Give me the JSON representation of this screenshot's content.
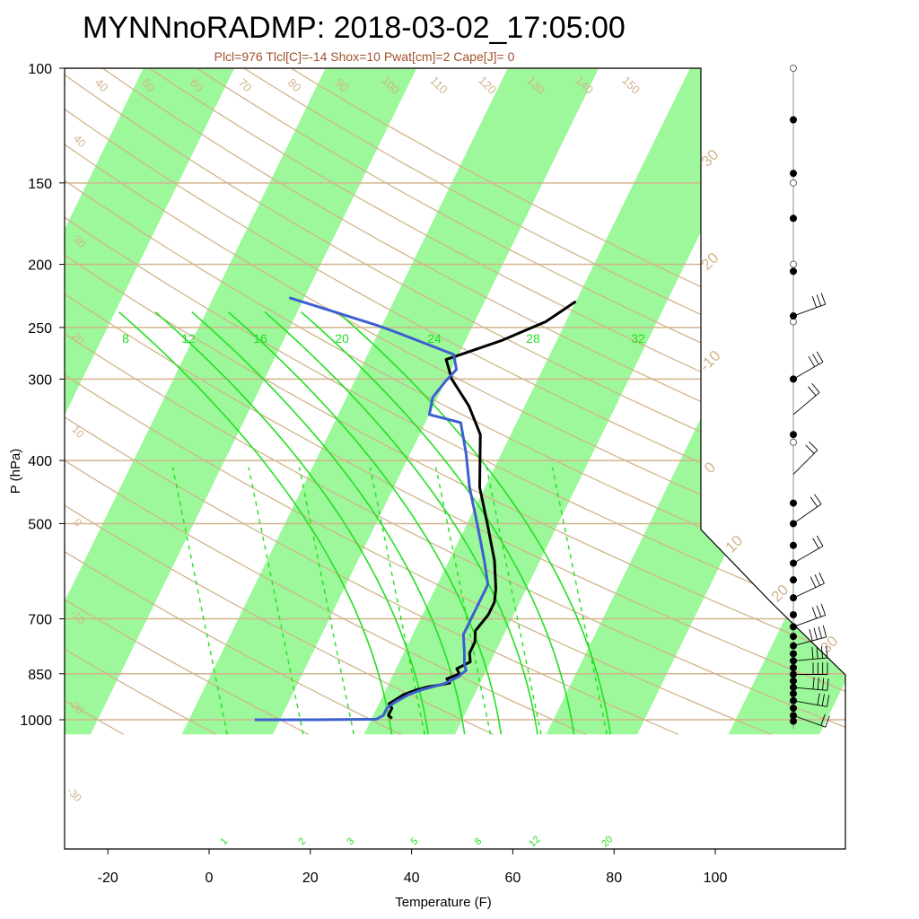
{
  "chart_data": {
    "type": "line",
    "title": "MYNNnoRADMP: 2018-03-02_17:05:00",
    "subtitle": "Plcl=976 Tlcl[C]=-14 Shox=10 Pwat[cm]=2 Cape[J]= 0",
    "xlabel": "Temperature (F)",
    "ylabel": "P (hPa)",
    "xlim": [
      -28,
      126
    ],
    "ylim": [
      1050,
      100
    ],
    "y_scale": "log",
    "x_ticks": [
      "-20",
      "0",
      "20",
      "40",
      "60",
      "80",
      "100"
    ],
    "y_ticks": [
      "100",
      "150",
      "200",
      "250",
      "300",
      "400",
      "500",
      "700",
      "850",
      "1000"
    ],
    "isotherm_labels_c": [
      "-30",
      "-20",
      "-10",
      "0",
      "10",
      "20",
      "30"
    ],
    "theta_labels": [
      "-30",
      "-20",
      "-10",
      "0",
      "10",
      "20",
      "30",
      "40",
      "50",
      "60",
      "70",
      "80",
      "90",
      "100",
      "110",
      "120",
      "130",
      "140",
      "150",
      "160"
    ],
    "thetae_labels": [
      "8",
      "12",
      "16",
      "20",
      "24",
      "28",
      "32"
    ],
    "mixing_ratio_labels": [
      "1",
      "2",
      "3",
      "5",
      "8",
      "12",
      "20"
    ],
    "colors": {
      "title": "#000000",
      "subtitle": "#a0522d",
      "isotherm_band": "#9cf89a",
      "dry_adiabat": "#d2b48c",
      "moist_adiabat": "#22e022",
      "mixing_ratio": "#22e022",
      "temperature": "#000000",
      "dewpoint": "#3d5fd0",
      "wind": "#000000"
    },
    "series": [
      {
        "name": "Temperature",
        "color": "#000000",
        "x_units": "F",
        "points": [
          [
            36,
            995
          ],
          [
            35,
            985
          ],
          [
            35,
            960
          ],
          [
            34,
            945
          ],
          [
            35,
            930
          ],
          [
            36,
            915
          ],
          [
            38,
            900
          ],
          [
            40,
            890
          ],
          [
            42,
            885
          ],
          [
            44,
            878
          ],
          [
            43,
            865
          ],
          [
            45,
            850
          ],
          [
            44,
            835
          ],
          [
            46,
            815
          ],
          [
            45,
            790
          ],
          [
            45,
            760
          ],
          [
            44,
            730
          ],
          [
            45,
            690
          ],
          [
            45,
            660
          ],
          [
            44,
            630
          ],
          [
            41,
            570
          ],
          [
            36,
            500
          ],
          [
            31,
            440
          ],
          [
            26,
            365
          ],
          [
            21,
            330
          ],
          [
            15,
            300
          ],
          [
            12,
            280
          ],
          [
            21,
            262
          ],
          [
            28,
            245
          ],
          [
            32,
            228
          ]
        ]
      },
      {
        "name": "Dew point",
        "color": "#3d5fd0",
        "x_units": "F",
        "points": [
          [
            9,
            1000
          ],
          [
            20,
            1000
          ],
          [
            33,
            998
          ],
          [
            34,
            985
          ],
          [
            34,
            960
          ],
          [
            35,
            940
          ],
          [
            37,
            915
          ],
          [
            39,
            900
          ],
          [
            41,
            890
          ],
          [
            43,
            880
          ],
          [
            45,
            860
          ],
          [
            46,
            840
          ],
          [
            45,
            820
          ],
          [
            44,
            790
          ],
          [
            42,
            740
          ],
          [
            42,
            690
          ],
          [
            42,
            650
          ],
          [
            42,
            620
          ],
          [
            39,
            570
          ],
          [
            34,
            500
          ],
          [
            29,
            440
          ],
          [
            25,
            390
          ],
          [
            21,
            350
          ],
          [
            14,
            340
          ],
          [
            13,
            320
          ],
          [
            14,
            302
          ],
          [
            15,
            290
          ],
          [
            13,
            275
          ],
          [
            0,
            255
          ],
          [
            -5,
            248
          ],
          [
            -25,
            225
          ]
        ]
      }
    ],
    "wind_profile": {
      "dots_hpa": [
        1005,
        985,
        960,
        935,
        912,
        892,
        872,
        852,
        832,
        812,
        792,
        770,
        745,
        720,
        690,
        650,
        610,
        575,
        540,
        500,
        465,
        365,
        300,
        240,
        205,
        170,
        145,
        120
      ],
      "open_hpa": [
        100,
        150,
        200,
        245,
        375
      ],
      "barbs": [
        {
          "p": 985,
          "dir": 290,
          "spd": 15
        },
        {
          "p": 935,
          "dir": 280,
          "spd": 25
        },
        {
          "p": 892,
          "dir": 275,
          "spd": 35
        },
        {
          "p": 852,
          "dir": 270,
          "spd": 40
        },
        {
          "p": 812,
          "dir": 265,
          "spd": 40
        },
        {
          "p": 770,
          "dir": 255,
          "spd": 35
        },
        {
          "p": 720,
          "dir": 250,
          "spd": 30
        },
        {
          "p": 650,
          "dir": 245,
          "spd": 25
        },
        {
          "p": 575,
          "dir": 240,
          "spd": 20
        },
        {
          "p": 500,
          "dir": 235,
          "spd": 20
        },
        {
          "p": 420,
          "dir": 225,
          "spd": 15
        },
        {
          "p": 340,
          "dir": 230,
          "spd": 20
        },
        {
          "p": 300,
          "dir": 240,
          "spd": 25
        },
        {
          "p": 240,
          "dir": 250,
          "spd": 25
        }
      ]
    }
  }
}
